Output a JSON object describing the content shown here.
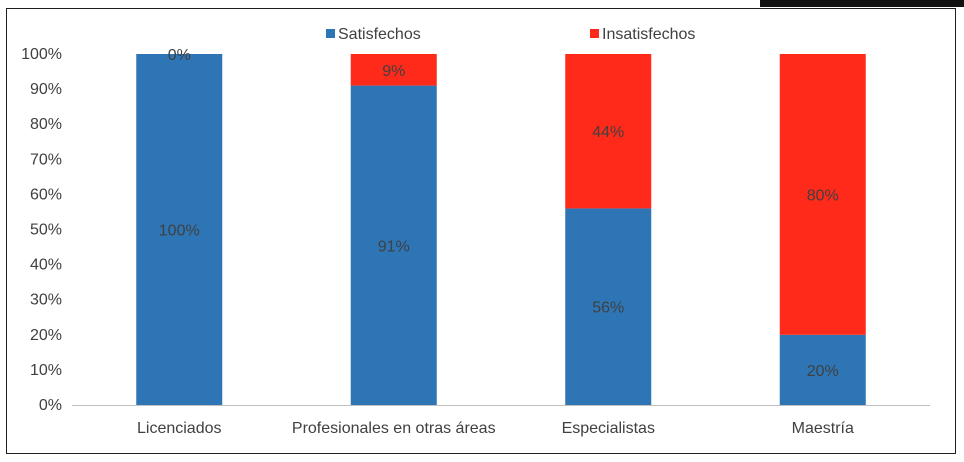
{
  "chart_data": {
    "type": "bar",
    "stacked": true,
    "categories": [
      "Licenciados",
      "Profesionales en otras áreas",
      "Especialistas",
      "Maestría"
    ],
    "series": [
      {
        "name": "Satisfechos",
        "color": "#2e75b6",
        "values": [
          100,
          91,
          56,
          20
        ],
        "labels": [
          "100%",
          "91%",
          "56%",
          "20%"
        ]
      },
      {
        "name": "Insatisfechos",
        "color": "#ff2a1a",
        "values": [
          0,
          9,
          44,
          80
        ],
        "labels": [
          "0%",
          "9%",
          "44%",
          "80%"
        ]
      }
    ],
    "y_ticks": [
      "0%",
      "10%",
      "20%",
      "30%",
      "40%",
      "50%",
      "60%",
      "70%",
      "80%",
      "90%",
      "100%"
    ],
    "ylim": [
      0,
      100
    ],
    "legend_position": "top",
    "grid": false
  }
}
